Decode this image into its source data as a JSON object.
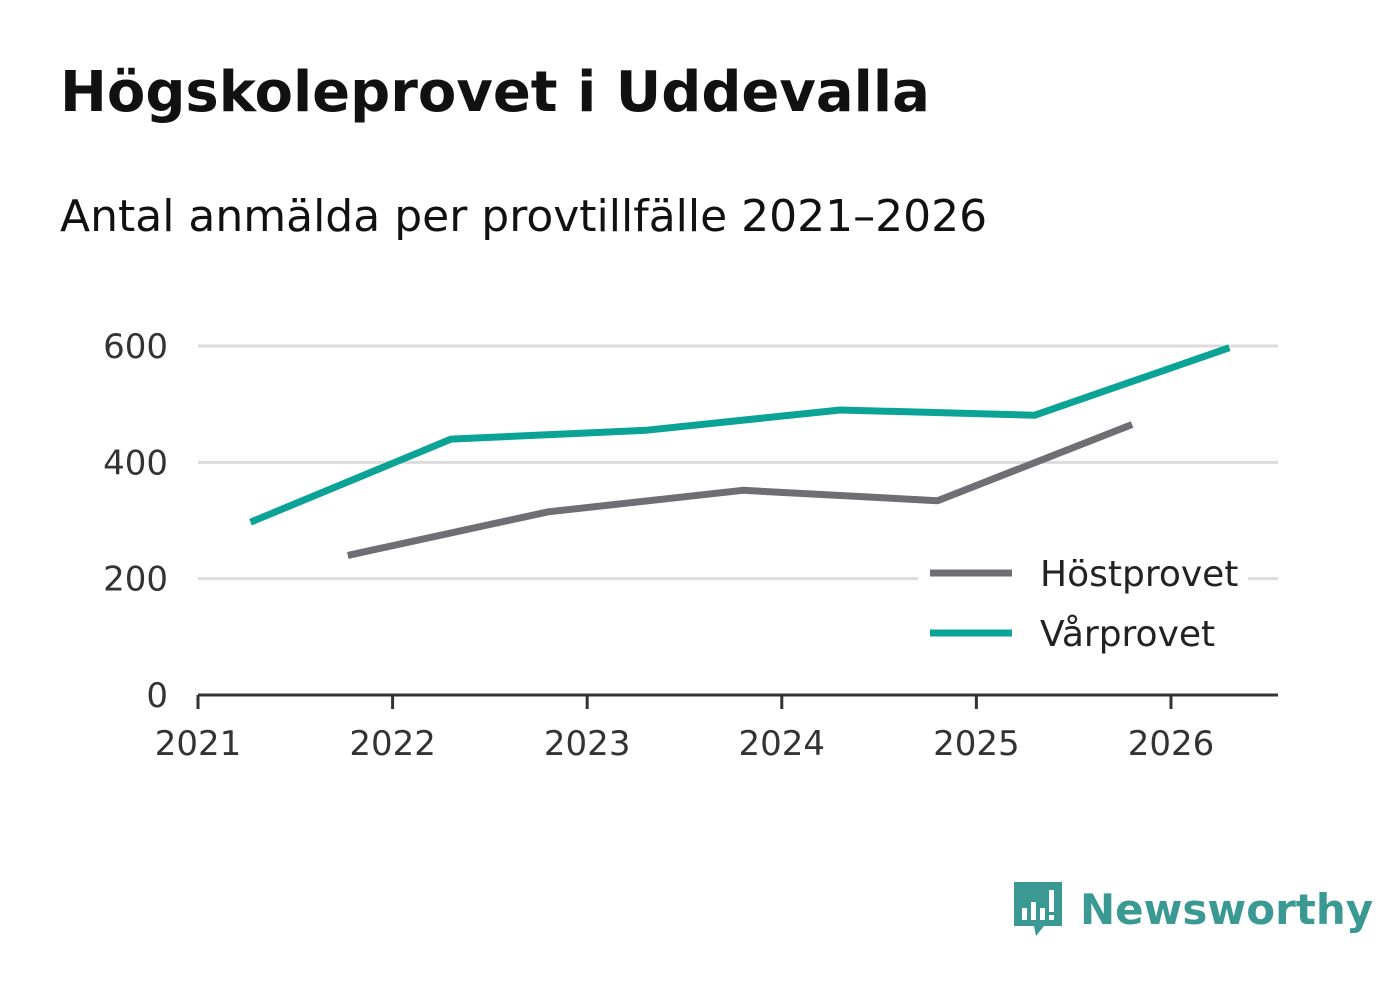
{
  "title": "Högskoleprovet i Uddevalla",
  "subtitle": "Antal anmälda per provtillfälle 2021–2026",
  "brand": {
    "name": "Newsworthy",
    "color": "#3a9a93",
    "icon": "newsworthy-logo-icon"
  },
  "chart_data": {
    "type": "line",
    "title": "Högskoleprovet i Uddevalla",
    "subtitle": "Antal anmälda per provtillfälle 2021–2026",
    "xlabel": "",
    "ylabel": "",
    "xlim": [
      2021,
      2026.55
    ],
    "ylim": [
      0,
      620
    ],
    "x_ticks": [
      "2021",
      "2022",
      "2023",
      "2024",
      "2025",
      "2026"
    ],
    "y_ticks": [
      "0",
      "200",
      "400",
      "600"
    ],
    "grid": true,
    "legend_position": "bottom-right",
    "series": [
      {
        "name": "Höstprovet",
        "color": "#6e6e73",
        "points": [
          [
            2021.77,
            240
          ],
          [
            2022.8,
            315
          ],
          [
            2023.8,
            352
          ],
          [
            2024.8,
            334
          ],
          [
            2025.8,
            465
          ]
        ]
      },
      {
        "name": "Vårprovet",
        "color": "#0aa396",
        "points": [
          [
            2021.27,
            297
          ],
          [
            2022.3,
            440
          ],
          [
            2023.3,
            455
          ],
          [
            2024.3,
            490
          ],
          [
            2025.3,
            481
          ],
          [
            2026.3,
            597
          ]
        ]
      }
    ]
  }
}
